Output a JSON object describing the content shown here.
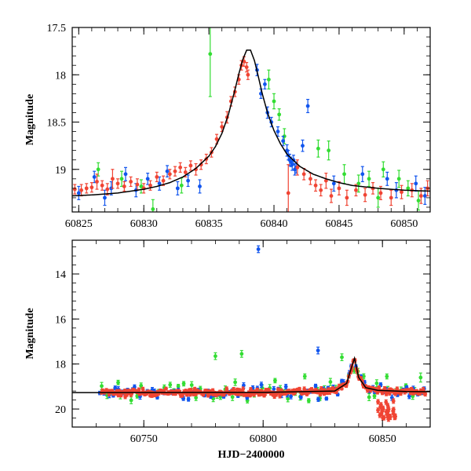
{
  "chart_data": [
    {
      "type": "scatter",
      "xlabel": "",
      "ylabel": "Magnitude",
      "xlim": [
        60824.5,
        60852
      ],
      "ylim": [
        19.45,
        17.5
      ],
      "y_inverted": true,
      "xticks": [
        60825,
        60830,
        60835,
        60840,
        60845,
        60850
      ],
      "yticks": [
        17.5,
        18,
        18.5,
        19
      ],
      "ytick_labels": [
        "17.5",
        "18",
        "18.5",
        "19"
      ],
      "colors": {
        "green": "#33dd33",
        "blue": "#1155ee",
        "red": "#f04433",
        "model": "#000000"
      },
      "model_curve": {
        "name": "",
        "x": [
          60824.5,
          60826,
          60828,
          60830,
          60831,
          60832,
          60833,
          60834,
          60835,
          60835.5,
          60836,
          60836.5,
          60837,
          60837.3,
          60837.6,
          60837.9,
          60838.2,
          60838.5,
          60838.8,
          60839.1,
          60839.5,
          60840,
          60840.5,
          60841,
          60842,
          60843,
          60844,
          60845,
          60846,
          60848,
          60850,
          60852
        ],
        "y": [
          19.28,
          19.27,
          19.25,
          19.21,
          19.18,
          19.14,
          19.08,
          18.99,
          18.86,
          18.76,
          18.62,
          18.42,
          18.16,
          17.99,
          17.84,
          17.74,
          17.74,
          17.85,
          18.02,
          18.2,
          18.4,
          18.59,
          18.73,
          18.84,
          18.97,
          19.05,
          19.1,
          19.14,
          19.17,
          19.2,
          19.22,
          19.23
        ]
      },
      "series": [
        {
          "color": "red",
          "points": [
            [
              60824.7,
              19.21,
              0.05
            ],
            [
              60825.2,
              19.22,
              0.06
            ],
            [
              60825.6,
              19.2,
              0.05
            ],
            [
              60826,
              19.19,
              0.05
            ],
            [
              60826.4,
              19.13,
              0.08
            ],
            [
              60826.8,
              19.17,
              0.05
            ],
            [
              60827.2,
              19.21,
              0.06
            ],
            [
              60827.6,
              19.1,
              0.1
            ],
            [
              60828,
              19.15,
              0.05
            ],
            [
              60828.5,
              19.18,
              0.05
            ],
            [
              60829,
              19.13,
              0.05
            ],
            [
              60829.5,
              19.16,
              0.06
            ],
            [
              60830,
              19.2,
              0.05
            ],
            [
              60830.5,
              19.17,
              0.05
            ],
            [
              60831,
              19.08,
              0.05
            ],
            [
              60831.5,
              19.12,
              0.05
            ],
            [
              60832,
              19.05,
              0.05
            ],
            [
              60832.4,
              19.02,
              0.05
            ],
            [
              60832.8,
              18.98,
              0.05
            ],
            [
              60833.2,
              19.03,
              0.05
            ],
            [
              60833.6,
              18.96,
              0.05
            ],
            [
              60834,
              19.0,
              0.06
            ],
            [
              60834.4,
              18.95,
              0.05
            ],
            [
              60834.8,
              18.89,
              0.05
            ],
            [
              60835.2,
              18.82,
              0.05
            ],
            [
              60835.6,
              18.68,
              0.05
            ],
            [
              60836,
              18.55,
              0.05
            ],
            [
              60836.4,
              18.45,
              0.06
            ],
            [
              60836.7,
              18.28,
              0.05
            ],
            [
              60837,
              18.18,
              0.05
            ],
            [
              60837.3,
              18.05,
              0.05
            ],
            [
              60837.5,
              17.9,
              0.05
            ],
            [
              60837.7,
              17.86,
              0.05
            ],
            [
              60837.9,
              17.92,
              0.05
            ],
            [
              60838,
              18.0,
              0.05
            ],
            [
              60841.1,
              19.25,
              0.3
            ],
            [
              60841.8,
              18.98,
              0.08
            ],
            [
              60842.3,
              19.05,
              0.06
            ],
            [
              60842.8,
              19.1,
              0.06
            ],
            [
              60843.2,
              19.17,
              0.06
            ],
            [
              60843.6,
              19.22,
              0.06
            ],
            [
              60844,
              19.12,
              0.08
            ],
            [
              60844.4,
              19.28,
              0.07
            ],
            [
              60845,
              19.2,
              0.07
            ],
            [
              60845.6,
              19.3,
              0.08
            ],
            [
              60846.3,
              19.22,
              0.06
            ],
            [
              60847,
              19.27,
              0.07
            ],
            [
              60847.6,
              19.2,
              0.06
            ],
            [
              60848.2,
              19.25,
              0.07
            ],
            [
              60849,
              19.3,
              0.08
            ],
            [
              60849.8,
              19.24,
              0.07
            ],
            [
              60850.6,
              19.22,
              0.07
            ],
            [
              60851.3,
              19.28,
              0.08
            ],
            [
              60851.8,
              19.2,
              0.08
            ]
          ]
        },
        {
          "color": "blue",
          "points": [
            [
              60825,
              19.25,
              0.07
            ],
            [
              60826.2,
              19.08,
              0.06
            ],
            [
              60827,
              19.3,
              0.08
            ],
            [
              60827.5,
              19.2,
              0.07
            ],
            [
              60828.6,
              19.05,
              0.07
            ],
            [
              60829.4,
              19.22,
              0.07
            ],
            [
              60830.3,
              19.1,
              0.06
            ],
            [
              60831.2,
              19.15,
              0.07
            ],
            [
              60831.8,
              19.02,
              0.06
            ],
            [
              60832.6,
              19.2,
              0.07
            ],
            [
              60833.4,
              19.12,
              0.06
            ],
            [
              60834.3,
              19.18,
              0.07
            ],
            [
              60838.7,
              17.95,
              0.06
            ],
            [
              60839,
              18.2,
              0.05
            ],
            [
              60839.3,
              18.1,
              0.05
            ],
            [
              60839.5,
              18.4,
              0.06
            ],
            [
              60839.8,
              18.5,
              0.05
            ],
            [
              60840.3,
              18.6,
              0.05
            ],
            [
              60840.7,
              18.7,
              0.05
            ],
            [
              60841,
              18.8,
              0.06
            ],
            [
              60841.1,
              18.85,
              0.05
            ],
            [
              60841.2,
              18.9,
              0.06
            ],
            [
              60841.3,
              18.92,
              0.05
            ],
            [
              60841.4,
              18.95,
              0.06
            ],
            [
              60841.5,
              18.9,
              0.05
            ],
            [
              60841.6,
              19.0,
              0.06
            ],
            [
              60841.7,
              18.98,
              0.06
            ],
            [
              60842.2,
              18.75,
              0.06
            ],
            [
              60842.6,
              18.33,
              0.07
            ],
            [
              60844.6,
              19.15,
              0.08
            ],
            [
              60846.8,
              19.05,
              0.08
            ],
            [
              60848.7,
              19.1,
              0.07
            ],
            [
              60849.4,
              19.22,
              0.08
            ],
            [
              60850.9,
              19.15,
              0.08
            ],
            [
              60851.6,
              19.28,
              0.09
            ]
          ]
        },
        {
          "color": "green",
          "points": [
            [
              60826.5,
              19.0,
              0.07
            ],
            [
              60828.3,
              19.1,
              0.08
            ],
            [
              60829.8,
              19.18,
              0.07
            ],
            [
              60830.7,
              19.42,
              0.1
            ],
            [
              60832.9,
              19.17,
              0.08
            ],
            [
              60835.1,
              17.78,
              0.45
            ],
            [
              60839.6,
              18.05,
              0.1
            ],
            [
              60840,
              18.28,
              0.08
            ],
            [
              60840.4,
              18.42,
              0.06
            ],
            [
              60840.8,
              18.65,
              0.08
            ],
            [
              60843.4,
              18.78,
              0.09
            ],
            [
              60844.2,
              18.8,
              0.1
            ],
            [
              60845.4,
              19.05,
              0.1
            ],
            [
              60846.5,
              19.15,
              0.09
            ],
            [
              60847.3,
              19.1,
              0.08
            ],
            [
              60848,
              19.3,
              0.1
            ],
            [
              60848.4,
              19.0,
              0.08
            ],
            [
              60849.6,
              19.1,
              0.09
            ],
            [
              60850.3,
              19.2,
              0.08
            ],
            [
              60851.1,
              19.33,
              0.1
            ]
          ]
        }
      ]
    },
    {
      "type": "scatter",
      "xlabel": "HJD−2400000",
      "ylabel": "Magnitude",
      "xlim": [
        60720,
        60870
      ],
      "ylim": [
        20.8,
        12.5
      ],
      "y_inverted": true,
      "xticks": [
        60750,
        60800,
        60850
      ],
      "yticks": [
        14,
        16,
        18,
        20
      ],
      "ytick_labels": [
        "14",
        "16",
        "18",
        "20"
      ],
      "colors": {
        "green": "#33dd33",
        "blue": "#1155ee",
        "red": "#f04433",
        "model": "#000000"
      },
      "model_curve": {
        "name": "",
        "x": [
          60720,
          60800,
          60830,
          60835,
          60837,
          60838.3,
          60840,
          60843,
          60848,
          60860,
          60870
        ],
        "y": [
          19.27,
          19.26,
          19.2,
          18.86,
          18.16,
          17.74,
          18.59,
          19.05,
          19.17,
          19.22,
          19.23
        ]
      },
      "outliers": [
        {
          "color": "blue",
          "x": 60798,
          "y": 12.9,
          "err": 0.15
        },
        {
          "color": "green",
          "x": 60780,
          "y": 17.65,
          "err": 0.15
        },
        {
          "color": "green",
          "x": 60791,
          "y": 17.55,
          "err": 0.15
        },
        {
          "color": "blue",
          "x": 60823,
          "y": 17.4,
          "err": 0.15
        },
        {
          "color": "green",
          "x": 60833,
          "y": 17.7,
          "err": 0.15
        },
        {
          "color": "green",
          "x": 60866,
          "y": 18.6,
          "err": 0.2
        }
      ]
    }
  ]
}
